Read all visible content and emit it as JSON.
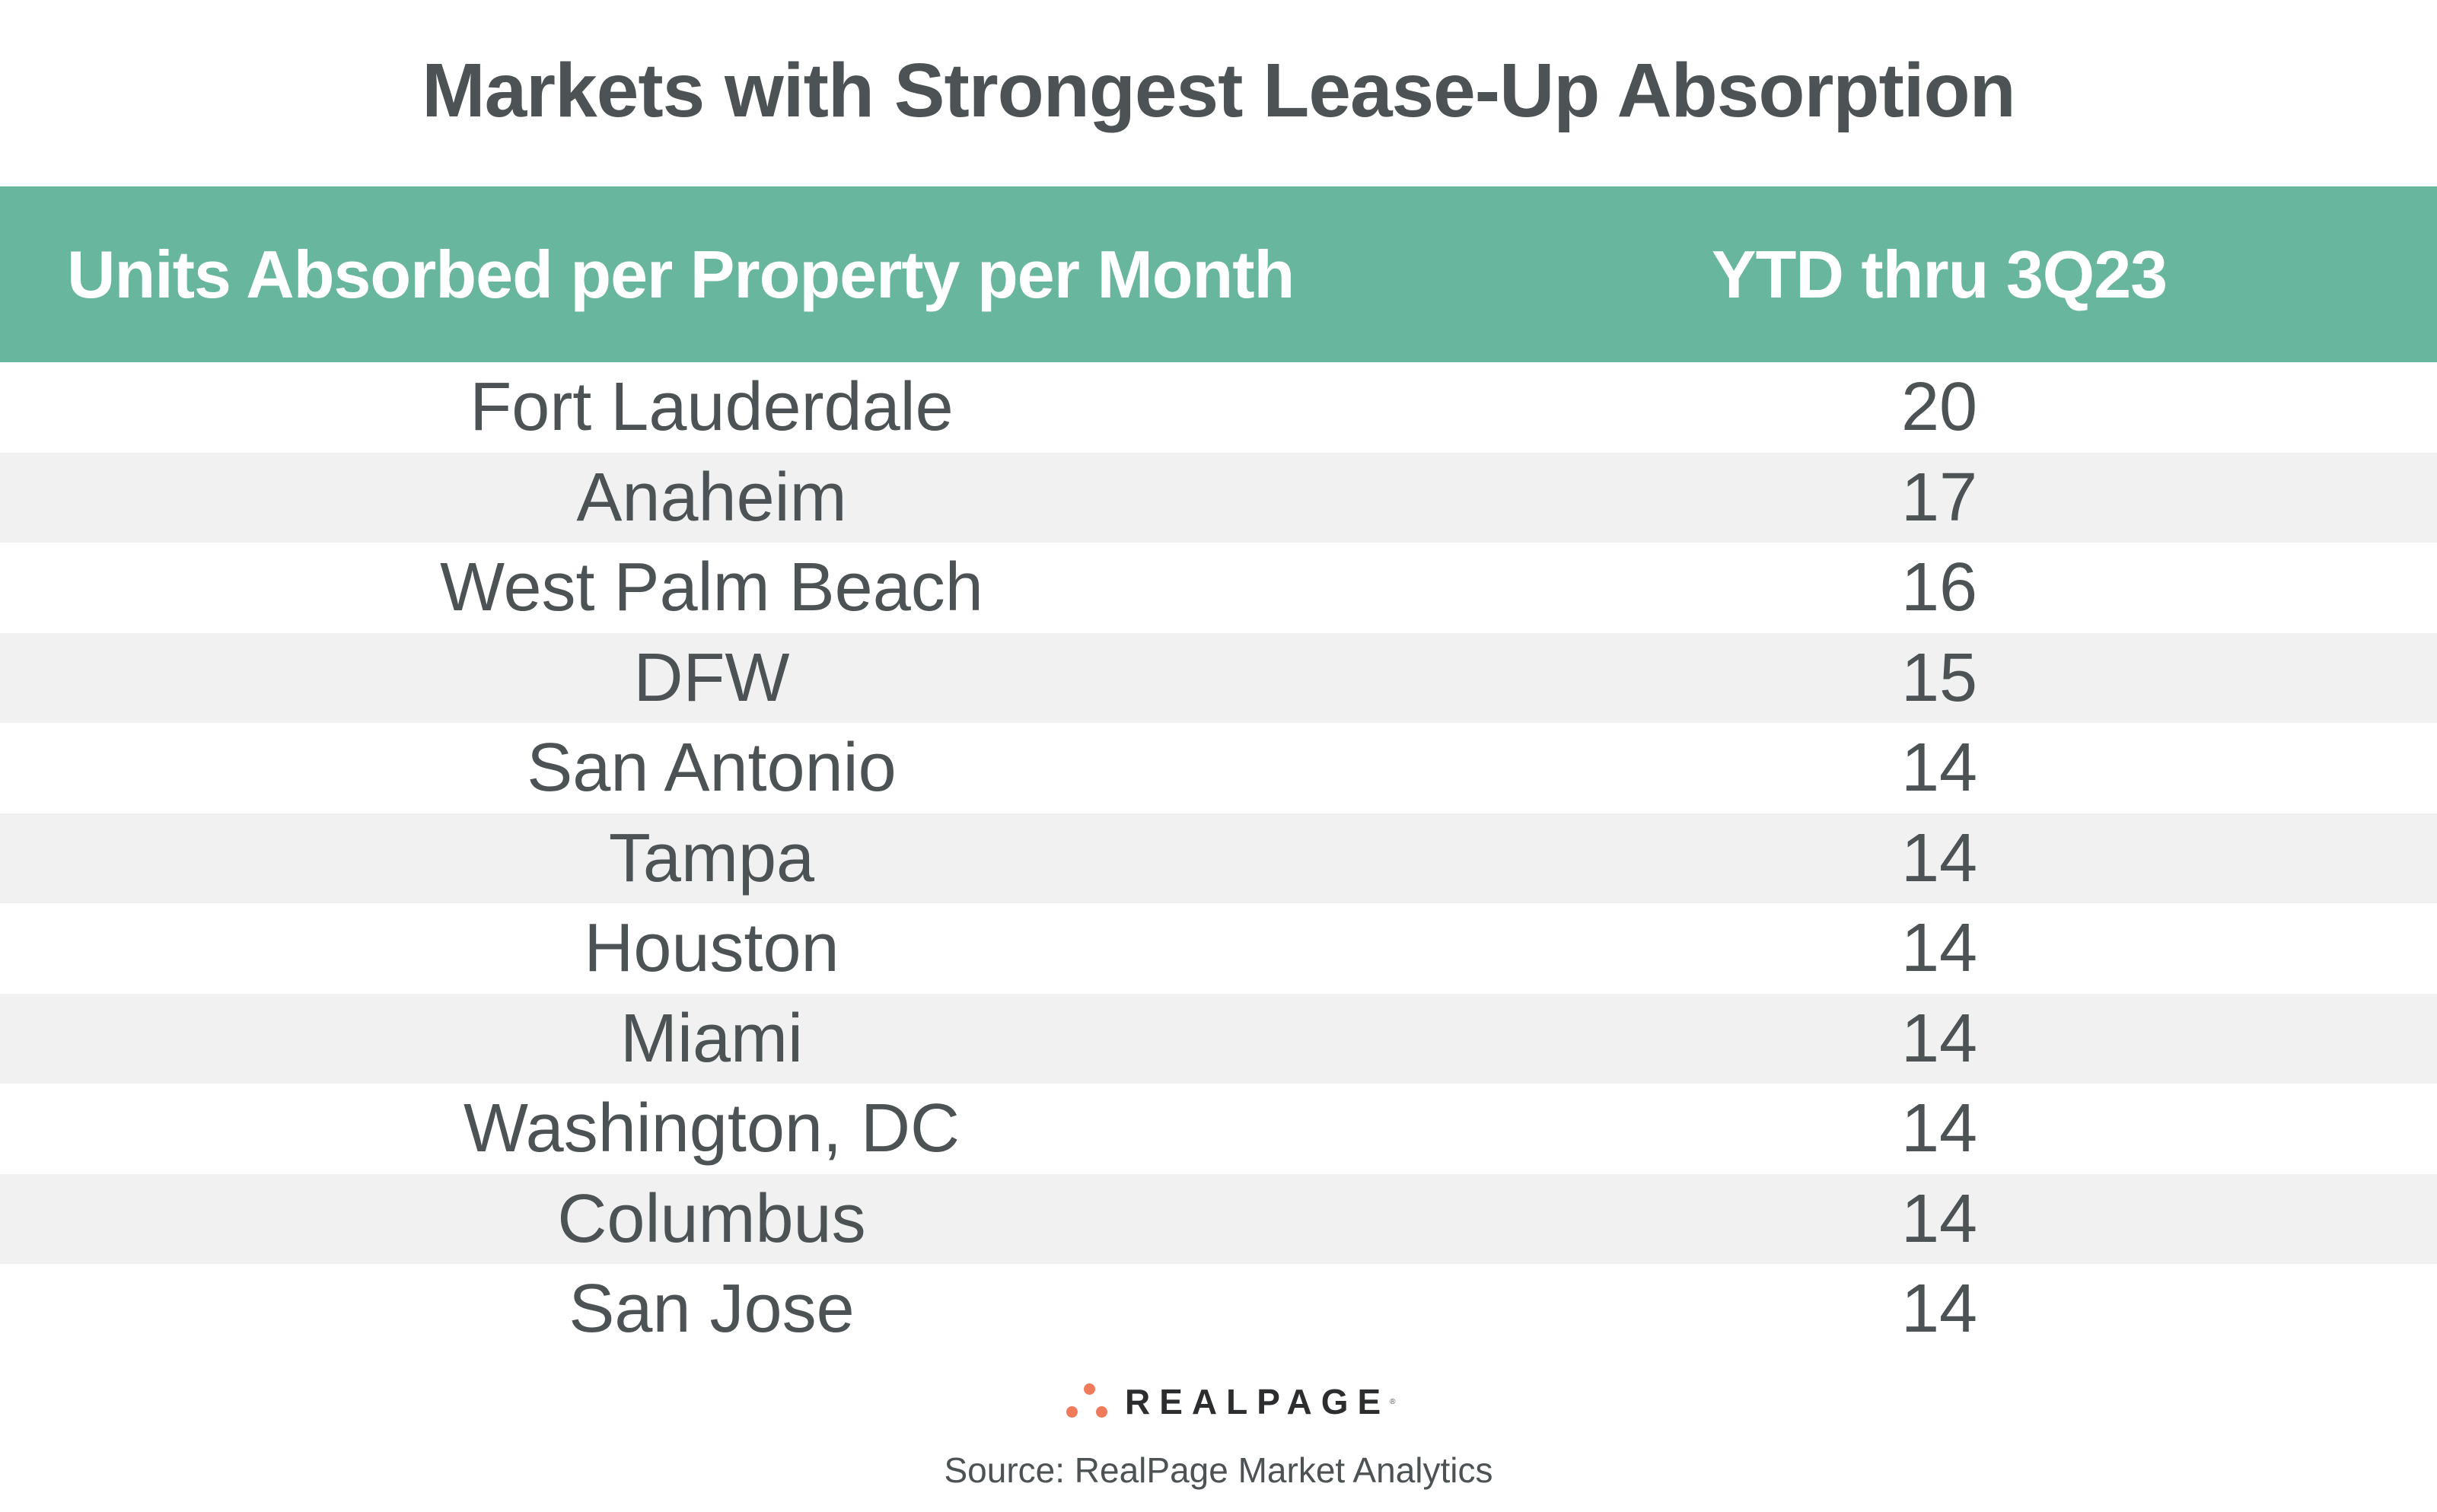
{
  "title": "Markets with Strongest  Lease-Up Absorption",
  "header": {
    "col1": "Units Absorbed per Property per Month",
    "col2": "YTD thru 3Q23",
    "background_color": "#69b69e"
  },
  "rows": [
    {
      "market": "Fort Lauderdale",
      "value": "20"
    },
    {
      "market": "Anaheim",
      "value": "17"
    },
    {
      "market": "West Palm Beach",
      "value": "16"
    },
    {
      "market": "DFW",
      "value": "15"
    },
    {
      "market": "San Antonio",
      "value": "14"
    },
    {
      "market": "Tampa",
      "value": "14"
    },
    {
      "market": "Houston",
      "value": "14"
    },
    {
      "market": "Miami",
      "value": "14"
    },
    {
      "market": "Washington, DC",
      "value": "14"
    },
    {
      "market": "Columbus",
      "value": "14"
    },
    {
      "market": "San Jose",
      "value": "14"
    }
  ],
  "logo": {
    "text": "REALPAGE",
    "accent_color": "#ef7b5b"
  },
  "source": "Source: RealPage Market Analytics"
}
